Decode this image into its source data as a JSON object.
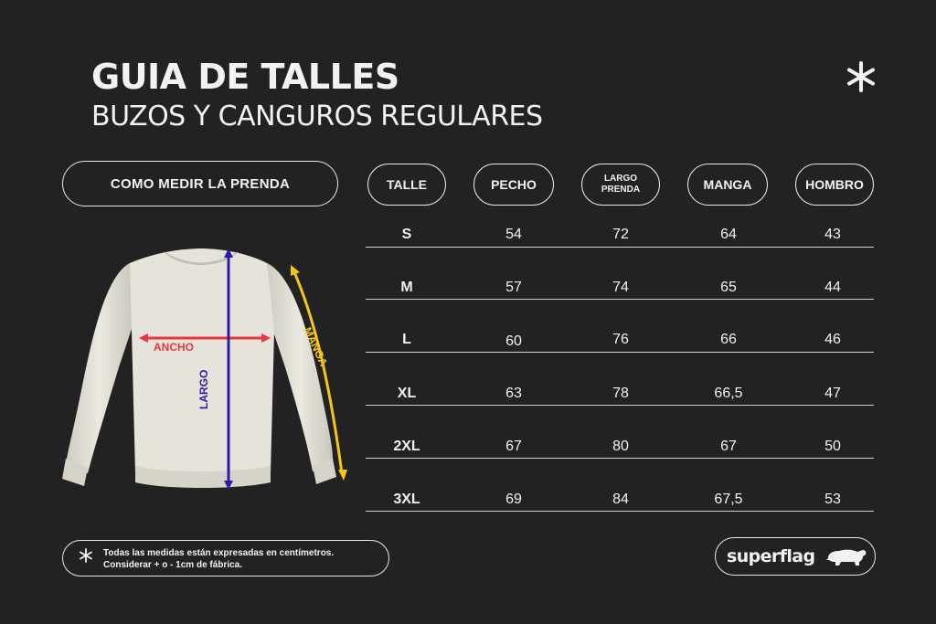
{
  "header": {
    "title": "GUIA DE TALLES",
    "subtitle": "BUZOS Y CANGUROS REGULARES"
  },
  "measure_button": {
    "label": "COMO MEDIR LA PRENDA"
  },
  "table": {
    "headers": [
      {
        "key": "talle",
        "label": "TALLE"
      },
      {
        "key": "pecho",
        "label": "PECHO"
      },
      {
        "key": "largo",
        "label_line1": "LARGO",
        "label_line2": "PRENDA"
      },
      {
        "key": "manga",
        "label": "MANGA"
      },
      {
        "key": "hombro",
        "label": "HOMBRO"
      }
    ],
    "rows": [
      {
        "talle": "S",
        "pecho": "54",
        "largo": "72",
        "manga": "64",
        "hombro": "43"
      },
      {
        "talle": "M",
        "pecho": "57",
        "largo": "74",
        "manga": "65",
        "hombro": "44"
      },
      {
        "talle": "L",
        "pecho": "60",
        "largo": "76",
        "manga": "66",
        "hombro": "46"
      },
      {
        "talle": "XL",
        "pecho": "63",
        "largo": "78",
        "manga": "66,5",
        "hombro": "47"
      },
      {
        "talle": "2XL",
        "pecho": "67",
        "largo": "80",
        "manga": "67",
        "hombro": "50"
      },
      {
        "talle": "3XL",
        "pecho": "69",
        "largo": "84",
        "manga": "67,5",
        "hombro": "53"
      }
    ]
  },
  "diagram": {
    "ancho_label": "ANCHO",
    "largo_label": "LARGO",
    "manga_label": "MANGA",
    "colors": {
      "ancho": "#e8383d",
      "largo": "#2e1aa6",
      "manga": "#f5c518",
      "garment": "#e4e2d8"
    }
  },
  "note": {
    "icon": "asterisk-icon",
    "line1": "Todas las medidas están expresadas en centímetros.",
    "line2": "Considerar + o - 1cm de fábrica."
  },
  "brand": {
    "name": "superflag",
    "icon": "bear-icon"
  },
  "colors": {
    "background": "#222222",
    "foreground": "#f2f2f2"
  }
}
